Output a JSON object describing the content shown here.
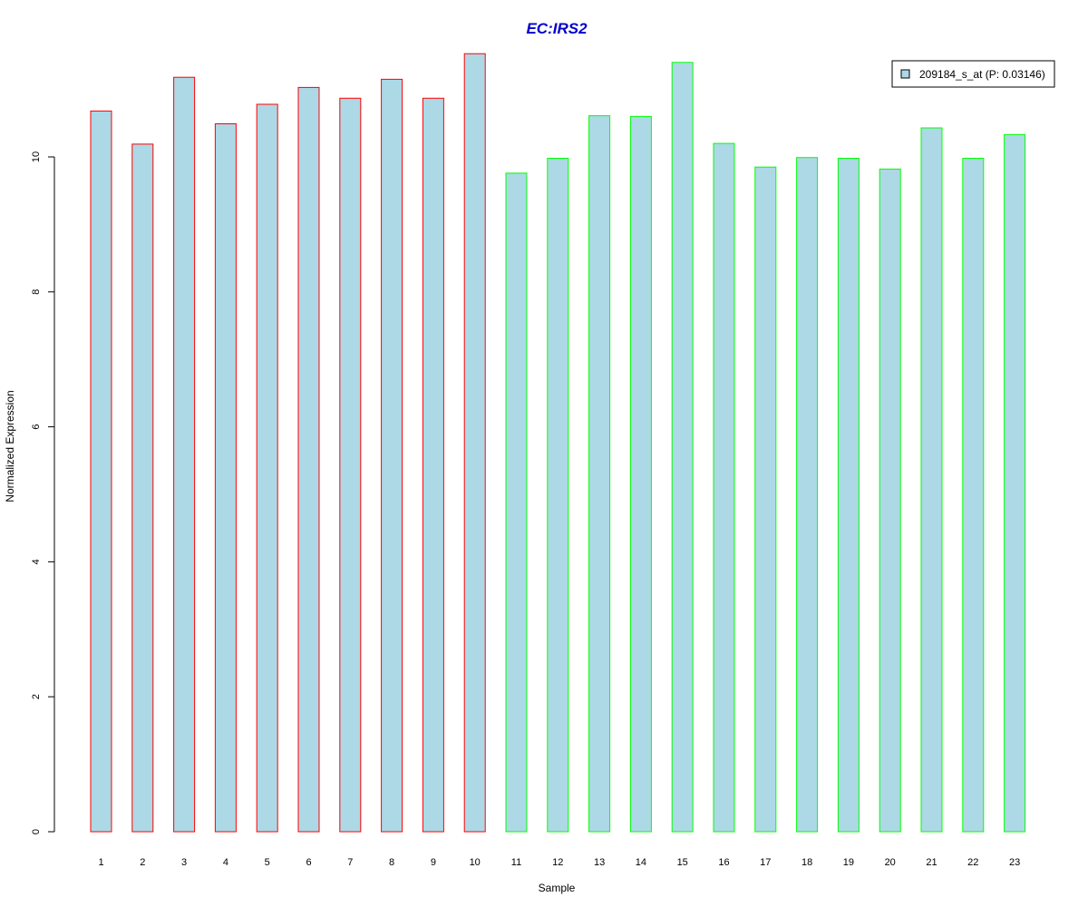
{
  "chart_data": {
    "type": "bar",
    "title": "EC:IRS2",
    "xlabel": "Sample",
    "ylabel": "Normalized Expression",
    "categories": [
      "1",
      "2",
      "3",
      "4",
      "5",
      "6",
      "7",
      "8",
      "9",
      "10",
      "11",
      "12",
      "13",
      "14",
      "15",
      "16",
      "17",
      "18",
      "19",
      "20",
      "21",
      "22",
      "23"
    ],
    "values": [
      10.68,
      10.19,
      11.18,
      10.49,
      10.78,
      11.03,
      10.87,
      11.15,
      10.87,
      11.53,
      9.76,
      9.98,
      10.61,
      10.6,
      11.4,
      10.2,
      9.85,
      9.99,
      9.98,
      9.82,
      10.43,
      9.98,
      10.33
    ],
    "groups": [
      "a",
      "a",
      "a",
      "a",
      "a",
      "a",
      "a",
      "a",
      "a",
      "a",
      "b",
      "b",
      "b",
      "b",
      "b",
      "b",
      "b",
      "b",
      "b",
      "b",
      "b",
      "b",
      "b"
    ],
    "y_ticks": [
      "0",
      "2",
      "4",
      "6",
      "8",
      "10"
    ],
    "ylim": [
      0,
      11.6
    ],
    "grid": false,
    "legend": {
      "position": "top-right",
      "label": "209184_s_at (P: 0.03146)"
    },
    "colors": {
      "bar_fill": "#add8e6",
      "group_a_border": "#ff0000",
      "group_b_border": "#00ff00",
      "title": "#0000cd",
      "axis": "#000000"
    }
  }
}
